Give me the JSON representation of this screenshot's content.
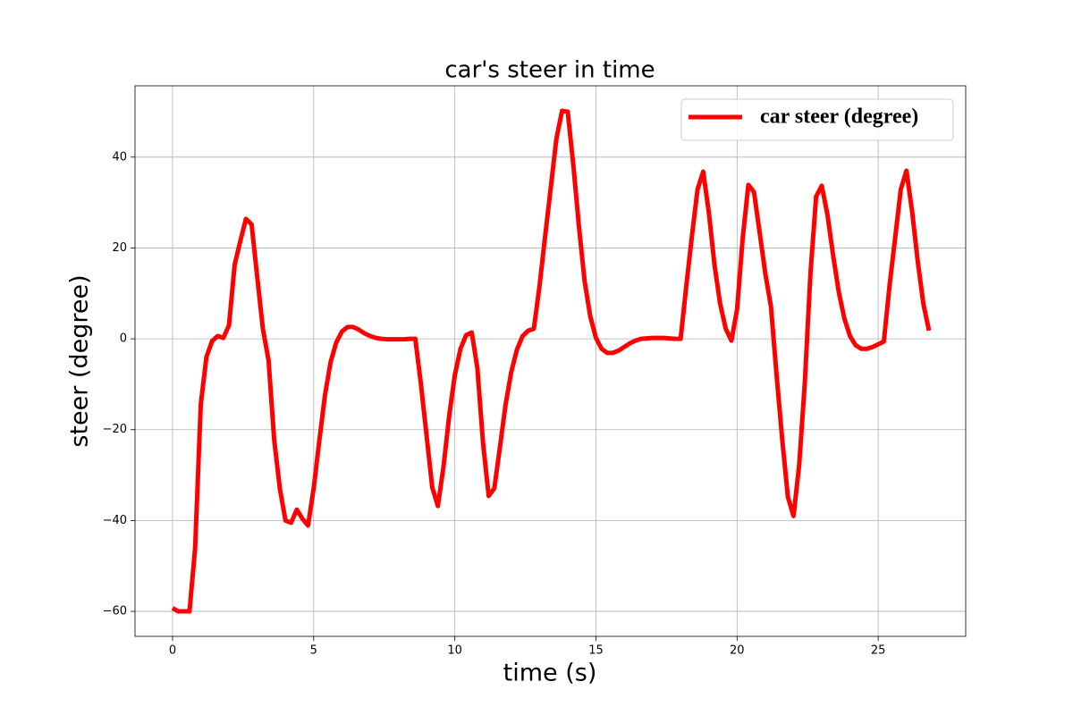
{
  "chart_data": {
    "type": "line",
    "title": "car's steer in time",
    "xlabel": "time (s)",
    "ylabel": "steer (degree)",
    "x": [
      0,
      0.2,
      0.4,
      0.6,
      0.8,
      1.0,
      1.2,
      1.4,
      1.6,
      1.8,
      2.0,
      2.2,
      2.4,
      2.6,
      2.8,
      3.0,
      3.2,
      3.4,
      3.6,
      3.8,
      4.0,
      4.2,
      4.4,
      4.6,
      4.8,
      5.0,
      5.2,
      5.4,
      5.6,
      5.8,
      6.0,
      6.2,
      6.4,
      6.6,
      6.8,
      7.0,
      7.2,
      7.4,
      7.6,
      7.8,
      8.0,
      8.2,
      8.4,
      8.6,
      8.8,
      9.0,
      9.2,
      9.4,
      9.6,
      9.8,
      10.0,
      10.2,
      10.4,
      10.6,
      10.8,
      11.0,
      11.2,
      11.4,
      11.6,
      11.8,
      12.0,
      12.2,
      12.4,
      12.6,
      12.8,
      13.0,
      13.2,
      13.4,
      13.6,
      13.8,
      14.0,
      14.2,
      14.4,
      14.6,
      14.8,
      15.0,
      15.2,
      15.4,
      15.6,
      15.8,
      16.0,
      16.2,
      16.4,
      16.6,
      16.8,
      17.0,
      17.2,
      17.4,
      17.6,
      17.8,
      18.0,
      18.2,
      18.4,
      18.6,
      18.8,
      19.0,
      19.2,
      19.4,
      19.6,
      19.8,
      20.0,
      20.2,
      20.4,
      20.6,
      20.8,
      21.0,
      21.2,
      21.4,
      21.6,
      21.8,
      22.0,
      22.2,
      22.4,
      22.6,
      22.8,
      23.0,
      23.2,
      23.4,
      23.6,
      23.8,
      24.0,
      24.2,
      24.4,
      24.6,
      24.8,
      25.0,
      25.2,
      25.4,
      25.6,
      25.8,
      26.0,
      26.2,
      26.4,
      26.6,
      26.8
    ],
    "series": [
      {
        "name": "car steer (degree)",
        "color": "#ff0000",
        "values": [
          -59.3,
          -60,
          -60,
          -60,
          -46,
          -14.4,
          -4,
          -0.5,
          0.6,
          0.2,
          3,
          16.3,
          21.5,
          26.4,
          25.2,
          13.6,
          2.2,
          -4.7,
          -22.2,
          -32.9,
          -40,
          -40.5,
          -37.6,
          -39.6,
          -41.1,
          -32.9,
          -22.4,
          -12.4,
          -5.1,
          -0.8,
          1.6,
          2.6,
          2.6,
          2,
          1.2,
          0.6,
          0.2,
          0,
          -0.1,
          -0.1,
          -0.1,
          -0.1,
          0,
          0,
          -10,
          -21.3,
          -32.7,
          -36.8,
          -28.1,
          -17,
          -8,
          -2.2,
          0.8,
          1.4,
          -6.5,
          -23,
          -34.6,
          -32.9,
          -23.8,
          -14.4,
          -7.3,
          -2.4,
          0.6,
          1.8,
          2.2,
          11.6,
          22.6,
          33.3,
          44.1,
          50.2,
          50,
          38.2,
          24.6,
          12.6,
          4.9,
          0.2,
          -2.2,
          -3.1,
          -3.1,
          -2.6,
          -1.8,
          -1,
          -0.4,
          0,
          0.1,
          0.2,
          0.2,
          0.2,
          0.1,
          0,
          0,
          11.6,
          22.6,
          32.9,
          36.8,
          27.8,
          16.3,
          7.7,
          2.2,
          -0.4,
          6.5,
          22.2,
          33.9,
          32.3,
          23.4,
          14.4,
          7.1,
          -8,
          -22.2,
          -34.8,
          -39,
          -27.8,
          -9.6,
          14.4,
          31.3,
          33.7,
          27.4,
          18.5,
          10.4,
          4.5,
          0.6,
          -1.4,
          -2.2,
          -2.2,
          -1.8,
          -1.2,
          -0.6,
          11.6,
          22.2,
          32.9,
          37,
          28.1,
          17.1,
          7.7,
          1.8
        ]
      }
    ],
    "xlim": [
      -1.33,
      28.1
    ],
    "ylim": [
      -65.5,
      55.7
    ],
    "xticks": [
      0,
      5,
      10,
      15,
      20,
      25
    ],
    "yticks": [
      {
        "value": -60,
        "label": "−60"
      },
      {
        "value": -40,
        "label": "−40"
      },
      {
        "value": -20,
        "label": "−20"
      },
      0,
      20,
      40
    ],
    "grid": true,
    "legend": "upper right"
  }
}
